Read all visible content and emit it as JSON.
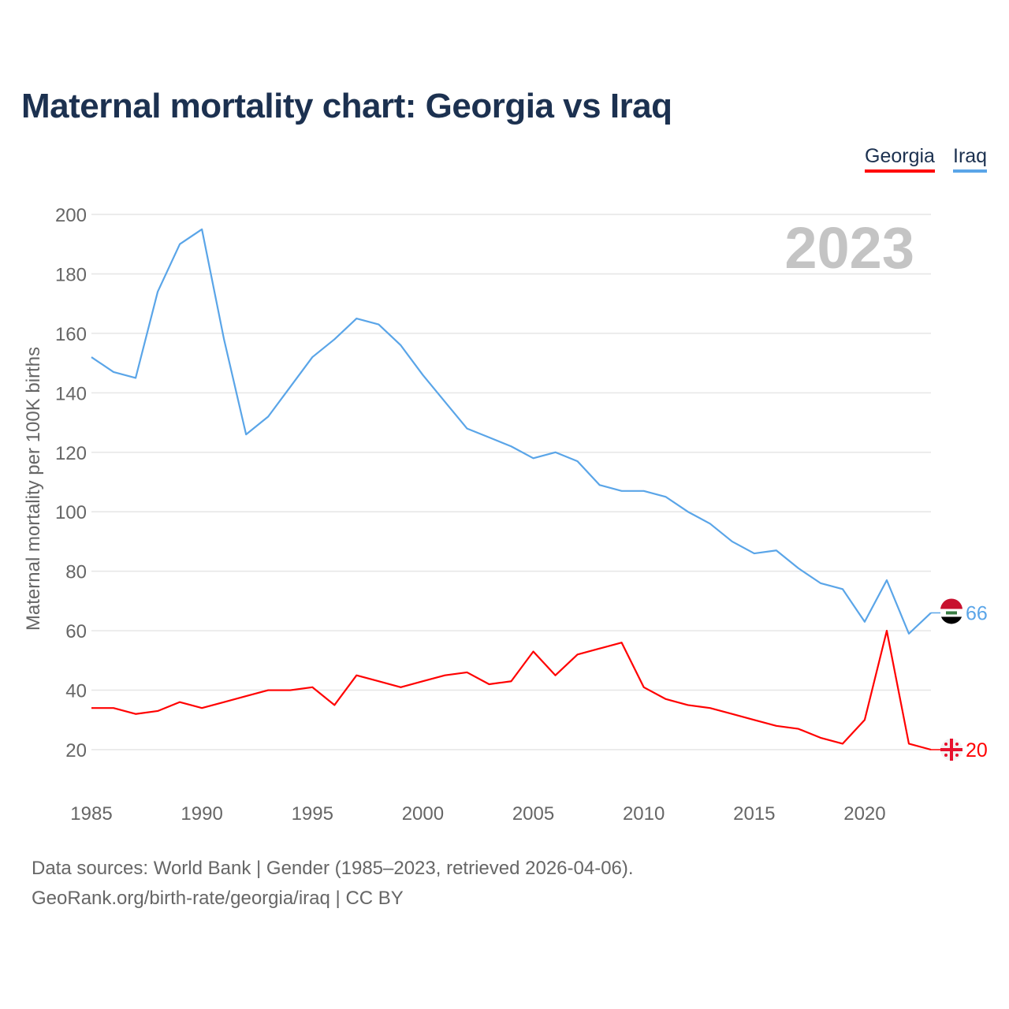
{
  "title": "Maternal mortality chart: Georgia vs Iraq",
  "legend": {
    "georgia": "Georgia",
    "iraq": "Iraq"
  },
  "footer": {
    "line1": "Data sources: World Bank | Gender (1985–2023, retrieved 2026-04-06).",
    "line2": "GeoRank.org/birth-rate/georgia/iraq | CC BY"
  },
  "chart_data": {
    "type": "line",
    "title": "Maternal mortality chart: Georgia vs Iraq",
    "ylabel": "Maternal mortality per 100K births",
    "xlabel": "",
    "year_label": "2023",
    "ylim": [
      20,
      200
    ],
    "yticks": [
      20,
      40,
      60,
      80,
      100,
      120,
      140,
      160,
      180,
      200
    ],
    "xticks": [
      1985,
      1990,
      1995,
      2000,
      2005,
      2010,
      2015,
      2020
    ],
    "x": [
      1985,
      1986,
      1987,
      1988,
      1989,
      1990,
      1991,
      1992,
      1993,
      1994,
      1995,
      1996,
      1997,
      1998,
      1999,
      2000,
      2001,
      2002,
      2003,
      2004,
      2005,
      2006,
      2007,
      2008,
      2009,
      2010,
      2011,
      2012,
      2013,
      2014,
      2015,
      2016,
      2017,
      2018,
      2019,
      2020,
      2021,
      2022,
      2023
    ],
    "series": [
      {
        "name": "Iraq",
        "color": "#5aa5e8",
        "end_label": "66",
        "values": [
          152,
          147,
          145,
          174,
          190,
          195,
          158,
          126,
          132,
          142,
          152,
          158,
          165,
          163,
          156,
          146,
          137,
          128,
          125,
          122,
          118,
          120,
          117,
          109,
          107,
          107,
          105,
          100,
          96,
          90,
          86,
          87,
          81,
          76,
          74,
          63,
          77,
          59,
          66
        ]
      },
      {
        "name": "Georgia",
        "color": "#ff0000",
        "end_label": "20",
        "values": [
          34,
          34,
          32,
          33,
          36,
          34,
          36,
          38,
          40,
          40,
          41,
          35,
          45,
          43,
          41,
          43,
          45,
          46,
          42,
          43,
          53,
          45,
          52,
          54,
          56,
          41,
          37,
          35,
          34,
          32,
          30,
          28,
          27,
          24,
          22,
          30,
          60,
          22,
          20
        ]
      }
    ]
  }
}
